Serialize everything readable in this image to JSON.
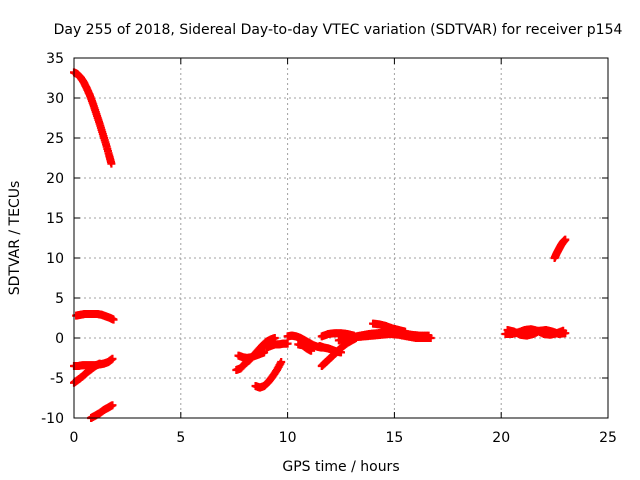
{
  "chart_data": {
    "type": "scatter",
    "title": "Day 255 of 2018, Sidereal Day-to-day VTEC variation (SDTVAR) for receiver p154",
    "xlabel": "GPS time / hours",
    "ylabel": "SDTVAR / TECUs",
    "xlim": [
      0,
      25
    ],
    "ylim": [
      -10,
      35
    ],
    "xticks": [
      "0",
      "5",
      "10",
      "15",
      "20",
      "25"
    ],
    "yticks": [
      "-10",
      "-5",
      "0",
      "5",
      "10",
      "15",
      "20",
      "25",
      "30",
      "35"
    ],
    "grid": true,
    "marker": "+",
    "color": "#ff0000",
    "series": [
      {
        "x": [
          0,
          0.15,
          0.3,
          0.45,
          0.6,
          0.75,
          0.9,
          1.05,
          1.2,
          1.35,
          1.5,
          1.65,
          1.75
        ],
        "values": [
          33.2,
          33.0,
          32.6,
          32.0,
          31.2,
          30.3,
          29.2,
          28.0,
          26.8,
          25.5,
          24.2,
          22.8,
          21.8
        ]
      },
      {
        "x": [
          0.1,
          0.3,
          0.5,
          0.7,
          0.9,
          1.1,
          1.3,
          1.5,
          1.7,
          1.85
        ],
        "values": [
          2.8,
          2.9,
          3.0,
          3.0,
          3.0,
          3.0,
          2.9,
          2.7,
          2.5,
          2.3
        ]
      },
      {
        "x": [
          0,
          0.2,
          0.4,
          0.6,
          0.8,
          1.0,
          1.2,
          1.4,
          1.6,
          1.8
        ],
        "values": [
          -3.5,
          -3.5,
          -3.4,
          -3.4,
          -3.4,
          -3.4,
          -3.3,
          -3.2,
          -3.0,
          -2.6
        ]
      },
      {
        "x": [
          0,
          0.2,
          0.4,
          0.6,
          0.8,
          1.0,
          1.2
        ],
        "values": [
          -5.6,
          -5.2,
          -4.8,
          -4.3,
          -3.9,
          -3.5,
          -3.2
        ]
      },
      {
        "x": [
          0.8,
          1.0,
          1.2,
          1.4,
          1.6,
          1.8
        ],
        "values": [
          -10.0,
          -9.7,
          -9.4,
          -9.0,
          -8.7,
          -8.4
        ]
      },
      {
        "x": [
          7.6,
          7.8,
          8.0,
          8.2,
          8.4,
          8.6,
          8.8,
          9.0,
          9.2,
          9.4
        ],
        "values": [
          -4.0,
          -3.8,
          -3.2,
          -2.8,
          -2.2,
          -1.6,
          -1.0,
          -0.5,
          -0.2,
          0.0
        ]
      },
      {
        "x": [
          7.7,
          7.9,
          8.1,
          8.3,
          8.5,
          8.7,
          8.9
        ],
        "values": [
          -2.2,
          -2.4,
          -2.5,
          -2.4,
          -2.2,
          -2.0,
          -1.8
        ]
      },
      {
        "x": [
          8.5,
          8.7,
          8.9,
          9.1,
          9.3,
          9.5,
          9.7
        ],
        "values": [
          -6.0,
          -6.2,
          -6.0,
          -5.5,
          -4.8,
          -4.0,
          -3.0
        ]
      },
      {
        "x": [
          9.0,
          9.2,
          9.4,
          9.6,
          9.8,
          10.0
        ],
        "values": [
          -1.2,
          -1.0,
          -0.8,
          -0.8,
          -0.7,
          -0.7
        ]
      },
      {
        "x": [
          10.0,
          10.2,
          10.4,
          10.6,
          10.8,
          11.0,
          11.2,
          11.4,
          11.6
        ],
        "values": [
          0.2,
          0.3,
          0.2,
          0.0,
          -0.3,
          -0.6,
          -0.9,
          -1.1,
          -1.2
        ]
      },
      {
        "x": [
          10.5,
          10.7,
          10.9,
          11.1
        ],
        "values": [
          -0.8,
          -0.9,
          -1.3,
          -1.6
        ]
      },
      {
        "x": [
          11.6,
          11.8,
          12.0,
          12.2,
          12.4,
          12.6,
          12.8,
          13.0,
          13.2
        ],
        "values": [
          -3.5,
          -3.0,
          -2.5,
          -2.0,
          -1.5,
          -1.0,
          -0.6,
          -0.3,
          0.0
        ]
      },
      {
        "x": [
          11.5,
          11.7,
          11.9,
          12.1,
          12.3,
          12.5
        ],
        "values": [
          -1.0,
          -1.2,
          -1.3,
          -1.5,
          -1.7,
          -1.8
        ]
      },
      {
        "x": [
          11.6,
          11.9,
          12.2,
          12.5,
          12.8,
          13.1
        ],
        "values": [
          0.2,
          0.5,
          0.6,
          0.6,
          0.5,
          0.3
        ]
      },
      {
        "x": [
          12.4,
          12.8,
          13.2,
          13.6,
          14.0,
          14.4,
          14.8,
          15.2,
          15.6,
          16.0,
          16.4,
          16.7
        ],
        "values": [
          -0.3,
          0.0,
          0.1,
          0.2,
          0.3,
          0.4,
          0.5,
          0.4,
          0.2,
          0.0,
          0.0,
          0.0
        ]
      },
      {
        "x": [
          13.0,
          13.4,
          13.8,
          14.2,
          14.6,
          15.0,
          15.4,
          15.8,
          16.2,
          16.6
        ],
        "values": [
          0.1,
          0.3,
          0.5,
          0.6,
          0.7,
          0.7,
          0.6,
          0.4,
          0.3,
          0.3
        ]
      },
      {
        "x": [
          14.0,
          14.3,
          14.6,
          14.9,
          15.2,
          15.5
        ],
        "values": [
          1.8,
          1.7,
          1.5,
          1.2,
          1.0,
          0.8
        ]
      },
      {
        "x": [
          20.3,
          20.6,
          20.9,
          21.2,
          21.5,
          21.8,
          22.1,
          22.4,
          22.7,
          23.0
        ],
        "values": [
          1.0,
          0.8,
          0.4,
          0.3,
          0.5,
          0.9,
          1.0,
          0.8,
          0.5,
          0.6
        ]
      },
      {
        "x": [
          20.2,
          20.5,
          20.8,
          21.1,
          21.4,
          21.7,
          22.0,
          22.3,
          22.6,
          22.9
        ],
        "values": [
          0.5,
          0.5,
          0.7,
          1.0,
          1.1,
          0.9,
          0.5,
          0.4,
          0.6,
          0.9
        ]
      },
      {
        "x": [
          22.5,
          22.6,
          22.7,
          22.8,
          22.9,
          23.0
        ],
        "values": [
          10.0,
          10.6,
          11.1,
          11.6,
          12.0,
          12.3
        ]
      }
    ]
  }
}
